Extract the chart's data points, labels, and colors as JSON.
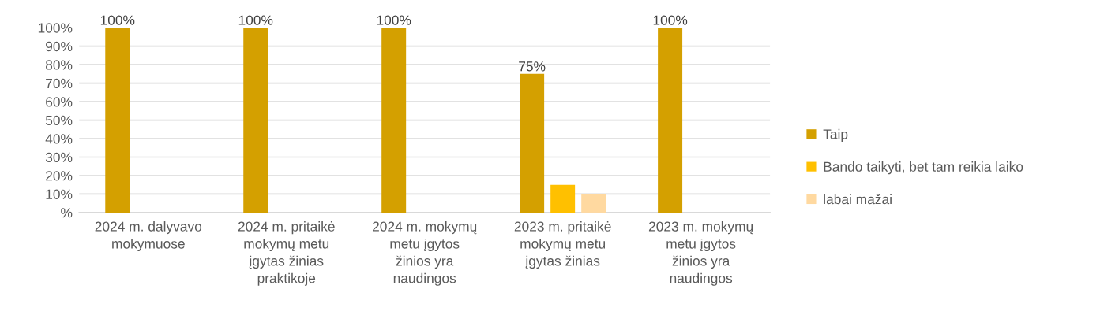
{
  "chart_data": {
    "type": "bar",
    "categories": [
      "2024 m. dalyvavo\nmokymuose",
      "2024 m. pritaikė\nmokymų metu\nįgytas žinias\npraktikoje",
      "2024 m. mokymų\nmetu įgytos\nžinios yra\nnaudingos",
      "2023 m. pritaikė\nmokymų metu\nįgytas žinias",
      "2023 m. mokymų\nmetu įgytos\nžinios yra\nnaudingos"
    ],
    "series": [
      {
        "name": "Taip",
        "color": "#d4a000",
        "values": [
          100,
          100,
          100,
          75,
          100
        ],
        "value_labels": [
          "100%",
          "100%",
          "100%",
          "75%",
          "100%"
        ]
      },
      {
        "name": "Bando taikyti, bet tam reikia laiko",
        "color": "#ffc000",
        "values": [
          null,
          null,
          null,
          15,
          null
        ]
      },
      {
        "name": "labai mažai",
        "color": "#ffd9a0",
        "values": [
          null,
          null,
          null,
          10,
          null
        ]
      }
    ],
    "ylim": [
      0,
      100
    ],
    "yticks": [
      {
        "value": 0,
        "label": "%"
      },
      {
        "value": 10,
        "label": "10%"
      },
      {
        "value": 20,
        "label": "20%"
      },
      {
        "value": 30,
        "label": "30%"
      },
      {
        "value": 40,
        "label": "40%"
      },
      {
        "value": 50,
        "label": "50%"
      },
      {
        "value": 60,
        "label": "60%"
      },
      {
        "value": 70,
        "label": "70%"
      },
      {
        "value": 80,
        "label": "80%"
      },
      {
        "value": 90,
        "label": "90%"
      },
      {
        "value": 100,
        "label": "100%"
      }
    ],
    "grid": "y",
    "legend": "right"
  }
}
